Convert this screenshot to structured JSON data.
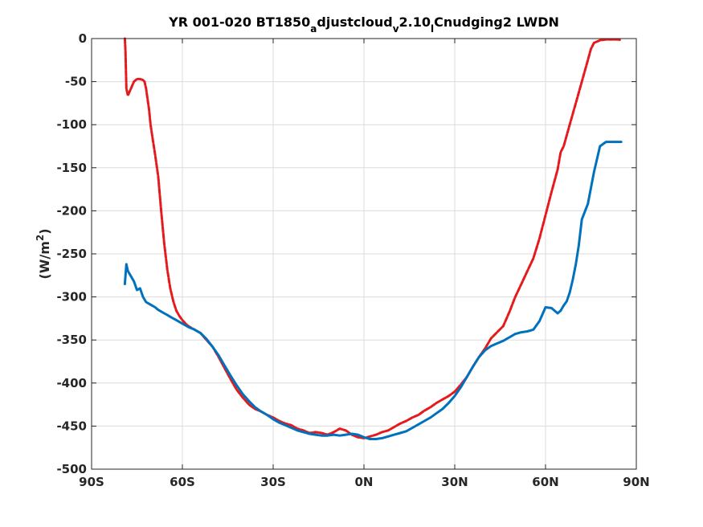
{
  "chart_data": {
    "type": "line",
    "title": {
      "main": "YR 001-020 BT1850",
      "sub1": "a",
      "part2": "djustcloud",
      "sub2": "v",
      "part3": "2.10",
      "sub3": "l",
      "part4": "Cnudging2 LWDN"
    },
    "ylabel": {
      "base": "(W/m",
      "sup": "2",
      "close": ")"
    },
    "xlabel": "",
    "xlim": [
      -90,
      90
    ],
    "ylim": [
      -500,
      0
    ],
    "xticks": [
      -90,
      -60,
      -30,
      0,
      30,
      60,
      90
    ],
    "xtick_labels": [
      "90S",
      "60S",
      "30S",
      "0N",
      "30N",
      "60N",
      "90N"
    ],
    "yticks": [
      0,
      -50,
      -100,
      -150,
      -200,
      -250,
      -300,
      -350,
      -400,
      -450,
      -500
    ],
    "ytick_labels": [
      "0",
      "-50",
      "-100",
      "-150",
      "-200",
      "-250",
      "-300",
      "-350",
      "-400",
      "-450",
      "-500"
    ],
    "grid": true,
    "series": [
      {
        "color": "#e41a1c",
        "style": "dashed",
        "x": [
          -79,
          -78.8,
          -78.5,
          -78,
          -77,
          -76,
          -75,
          -74,
          -73,
          -72.5,
          -72,
          -71,
          -70.5,
          -70,
          -69,
          -68,
          -67,
          -66,
          -65,
          -64,
          -63,
          -62,
          -61,
          -60,
          -59,
          -58,
          -57,
          -56,
          -55,
          -54,
          -52,
          -50,
          -48,
          -46,
          -44,
          -42,
          -40,
          -38,
          -36,
          -34,
          -32,
          -30,
          -28,
          -26,
          -24,
          -22,
          -20,
          -18,
          -16,
          -14,
          -12,
          -10,
          -8,
          -6,
          -4,
          -2,
          0,
          2,
          4,
          6,
          8,
          10,
          12,
          14,
          16,
          18,
          20,
          22,
          24,
          26,
          28,
          30,
          32,
          34,
          36,
          38,
          40,
          42,
          44,
          46,
          48,
          50,
          52,
          54,
          56,
          58,
          60,
          62,
          64,
          65,
          66,
          68,
          70,
          72,
          74,
          75,
          76,
          78,
          80,
          82,
          84,
          85
        ],
        "y": [
          0,
          -15,
          -58,
          -66,
          -58,
          -50,
          -47,
          -47,
          -48,
          -50,
          -58,
          -83,
          -100,
          -112,
          -135,
          -160,
          -200,
          -238,
          -268,
          -290,
          -305,
          -316,
          -322,
          -327,
          -331,
          -334,
          -336,
          -338,
          -340,
          -342,
          -350,
          -358,
          -370,
          -383,
          -396,
          -408,
          -417,
          -425,
          -430,
          -433,
          -437,
          -440,
          -444,
          -447,
          -449,
          -453,
          -455,
          -458,
          -457,
          -458,
          -460,
          -457,
          -453,
          -455,
          -460,
          -463,
          -464,
          -462,
          -460,
          -457,
          -455,
          -451,
          -447,
          -444,
          -440,
          -437,
          -432,
          -428,
          -423,
          -419,
          -415,
          -410,
          -402,
          -393,
          -381,
          -370,
          -360,
          -348,
          -341,
          -334,
          -318,
          -300,
          -285,
          -270,
          -255,
          -232,
          -205,
          -178,
          -152,
          -132,
          -125,
          -100,
          -75,
          -50,
          -25,
          -12,
          -5,
          -2,
          -1,
          -1,
          -1,
          -2
        ]
      },
      {
        "color": "#0072bd",
        "style": "solid",
        "x": [
          -79,
          -78.5,
          -78,
          -77,
          -76,
          -75,
          -74,
          -73,
          -72,
          -71,
          -70,
          -69,
          -68,
          -67,
          -66,
          -65,
          -64,
          -63,
          -62,
          -61,
          -60,
          -59,
          -58,
          -56,
          -54,
          -52,
          -50,
          -48,
          -46,
          -44,
          -42,
          -40,
          -38,
          -36,
          -34,
          -32,
          -30,
          -28,
          -26,
          -24,
          -22,
          -20,
          -18,
          -16,
          -14,
          -12,
          -10,
          -8,
          -6,
          -4,
          -2,
          0,
          2,
          4,
          6,
          8,
          10,
          12,
          14,
          16,
          18,
          20,
          22,
          24,
          26,
          28,
          30,
          32,
          34,
          36,
          38,
          40,
          42,
          44,
          46,
          48,
          50,
          52,
          54,
          56,
          58,
          60,
          62,
          64,
          65,
          66,
          67,
          68,
          69,
          70,
          71,
          72,
          74,
          76,
          78,
          80,
          82,
          84,
          85
        ],
        "y": [
          -285,
          -262,
          -270,
          -276,
          -282,
          -292,
          -290,
          -300,
          -306,
          -308,
          -310,
          -312,
          -315,
          -317,
          -319,
          -321,
          -323,
          -325,
          -327,
          -329,
          -331,
          -333,
          -335,
          -338,
          -342,
          -349,
          -358,
          -368,
          -380,
          -392,
          -403,
          -413,
          -421,
          -428,
          -433,
          -437,
          -442,
          -446,
          -449,
          -452,
          -455,
          -457,
          -459,
          -460,
          -461,
          -461,
          -460,
          -461,
          -460,
          -459,
          -460,
          -463,
          -465,
          -465,
          -464,
          -462,
          -460,
          -458,
          -456,
          -452,
          -448,
          -444,
          -440,
          -435,
          -430,
          -423,
          -415,
          -405,
          -393,
          -381,
          -370,
          -362,
          -357,
          -354,
          -351,
          -347,
          -343,
          -341,
          -340,
          -338,
          -328,
          -312,
          -313,
          -319,
          -316,
          -310,
          -305,
          -295,
          -280,
          -262,
          -240,
          -210,
          -192,
          -155,
          -125,
          -120,
          -120,
          -120,
          -120
        ]
      }
    ]
  }
}
